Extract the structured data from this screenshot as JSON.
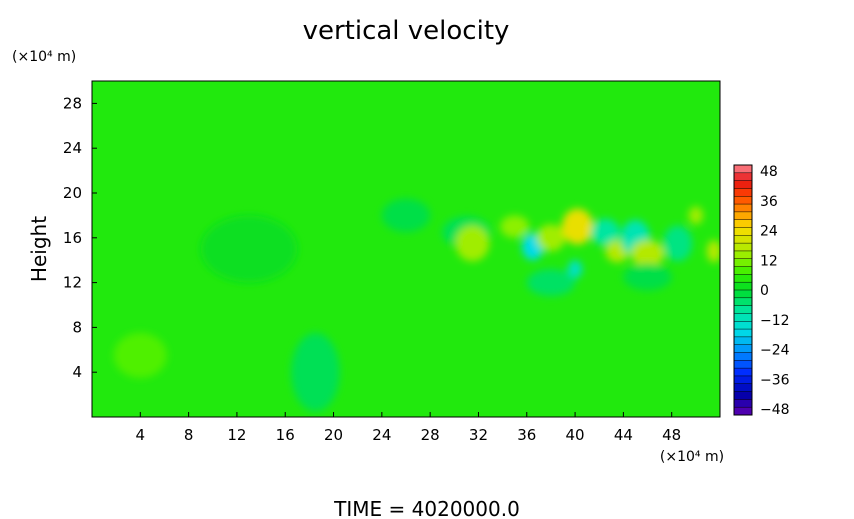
{
  "chart_data": {
    "type": "heatmap",
    "title": "vertical velocity",
    "ylabel": "Height",
    "y_unit": "(×10⁴ m)",
    "x_unit": "(×10⁴ m)",
    "xlim": [
      0,
      52
    ],
    "ylim": [
      0,
      30
    ],
    "x_ticks": [
      "4",
      "8",
      "12",
      "16",
      "20",
      "24",
      "28",
      "32",
      "36",
      "40",
      "44",
      "48"
    ],
    "y_ticks": [
      "4",
      "8",
      "12",
      "16",
      "20",
      "24",
      "28"
    ],
    "background_value": 4,
    "colorbar": {
      "min": -48,
      "max": 48,
      "labels": [
        "48",
        "36",
        "24",
        "12",
        "0",
        "−12",
        "−24",
        "−36",
        "−48"
      ]
    },
    "features": [
      {
        "x": 4,
        "y": 5.5,
        "rx": 2.2,
        "ry": 2,
        "value": 8
      },
      {
        "x": 18.5,
        "y": 4,
        "rx": 2,
        "ry": 3.5,
        "value": -3
      },
      {
        "x": 13,
        "y": 15,
        "rx": 4,
        "ry": 3,
        "value": 1
      },
      {
        "x": 26,
        "y": 18,
        "rx": 2,
        "ry": 1.5,
        "value": -2
      },
      {
        "x": 31,
        "y": 16.5,
        "rx": 2,
        "ry": 1.4,
        "value": -3
      },
      {
        "x": 31.5,
        "y": 15.5,
        "rx": 1.4,
        "ry": 1.6,
        "value": 14
      },
      {
        "x": 35,
        "y": 17,
        "rx": 1.2,
        "ry": 1,
        "value": 12
      },
      {
        "x": 36.5,
        "y": 15.2,
        "rx": 0.9,
        "ry": 1.2,
        "value": -16
      },
      {
        "x": 38,
        "y": 16,
        "rx": 1.2,
        "ry": 1.2,
        "value": 14
      },
      {
        "x": 40.2,
        "y": 17,
        "rx": 1.3,
        "ry": 1.6,
        "value": 22
      },
      {
        "x": 40,
        "y": 13.2,
        "rx": 0.6,
        "ry": 0.8,
        "value": -12
      },
      {
        "x": 42.5,
        "y": 16.5,
        "rx": 1.2,
        "ry": 1.2,
        "value": -8
      },
      {
        "x": 43.5,
        "y": 14.8,
        "rx": 1,
        "ry": 1,
        "value": 16
      },
      {
        "x": 45,
        "y": 16,
        "rx": 1.2,
        "ry": 1.6,
        "value": -10
      },
      {
        "x": 46,
        "y": 14.6,
        "rx": 1.4,
        "ry": 1.2,
        "value": 16
      },
      {
        "x": 48.5,
        "y": 15.5,
        "rx": 1.2,
        "ry": 1.6,
        "value": -6
      },
      {
        "x": 50,
        "y": 18,
        "rx": 0.6,
        "ry": 0.8,
        "value": 14
      },
      {
        "x": 51.5,
        "y": 14.8,
        "rx": 0.6,
        "ry": 1,
        "value": 16
      },
      {
        "x": 46,
        "y": 12.5,
        "rx": 2,
        "ry": 1.2,
        "value": -2
      },
      {
        "x": 38,
        "y": 12,
        "rx": 2,
        "ry": 1.2,
        "value": -4
      }
    ]
  },
  "footer": {
    "time_label": "TIME  =  4020000.0"
  }
}
